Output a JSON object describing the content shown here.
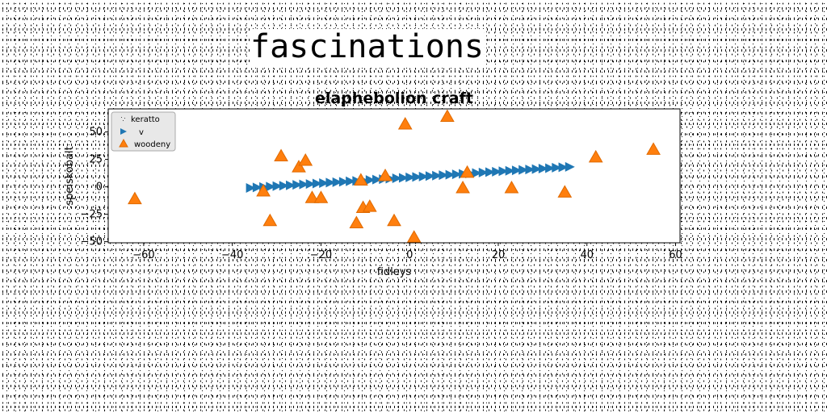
{
  "page": {
    "title": "fascinations"
  },
  "chart_data": {
    "type": "scatter",
    "title": "elaphebolion craft",
    "xlabel": "fidleys",
    "ylabel": "speiskobalt",
    "xlim": [
      -68,
      61
    ],
    "ylim": [
      -51,
      71
    ],
    "xticks": [
      -60,
      -40,
      -20,
      0,
      20,
      40,
      60
    ],
    "yticks": [
      -50,
      -25,
      0,
      25,
      50
    ],
    "xtick_labels": [
      "−60",
      "−40",
      "−20",
      "0",
      "20",
      "40",
      "60"
    ],
    "ytick_labels": [
      "−50",
      "−25",
      "0",
      "25",
      "50"
    ],
    "legend_position": "upper left",
    "colors": {
      "v": "#1f77b4",
      "woodeny": "#ff7f0e",
      "woodeny_edge": "#e06a00"
    },
    "series": [
      {
        "name": "keratto",
        "marker": "pixel",
        "x": [],
        "y": []
      },
      {
        "name": "v",
        "marker": "triangle-right",
        "x": [
          -36,
          -34.5,
          -33,
          -31.5,
          -30,
          -28.5,
          -27,
          -25.5,
          -24,
          -22.5,
          -21,
          -19.5,
          -18,
          -16.5,
          -15,
          -13.5,
          -12,
          -10.5,
          -9,
          -7.5,
          -6,
          -4.5,
          -3,
          -1.5,
          0,
          1.5,
          3,
          4.5,
          6,
          7.5,
          9,
          10.5,
          12,
          13.5,
          15,
          16.5,
          18,
          19.5,
          21,
          22.5,
          24,
          25.5,
          27,
          28.5,
          30,
          31.5,
          33,
          34.5,
          36
        ],
        "y": [
          -1.0,
          -0.6,
          -0.2,
          0.2,
          0.6,
          1.0,
          1.4,
          1.8,
          2.2,
          2.6,
          3.0,
          3.4,
          3.8,
          4.2,
          4.6,
          5.0,
          5.4,
          5.8,
          6.2,
          6.6,
          7.0,
          7.4,
          7.8,
          8.2,
          8.6,
          9.0,
          9.4,
          9.8,
          10.2,
          10.6,
          11.0,
          11.4,
          11.8,
          12.2,
          12.6,
          13.0,
          13.4,
          13.8,
          14.2,
          14.6,
          15.0,
          15.4,
          15.8,
          16.2,
          16.6,
          17.0,
          17.4,
          17.8,
          18.2
        ]
      },
      {
        "name": "woodeny",
        "marker": "triangle-up",
        "x": [
          -62,
          -33,
          -31.5,
          -29,
          -25,
          -23.5,
          -22,
          -20,
          -12,
          -11,
          -10.5,
          -9,
          -5.5,
          -3.5,
          -1,
          1,
          8.5,
          12,
          13,
          23,
          35,
          42,
          55
        ],
        "y": [
          -11,
          -4,
          -31,
          28,
          18,
          24,
          -10,
          -10,
          -33,
          6,
          -19,
          -18,
          10,
          -31,
          57,
          -46,
          64,
          -1,
          13,
          -1,
          -5,
          27,
          34
        ]
      }
    ]
  }
}
